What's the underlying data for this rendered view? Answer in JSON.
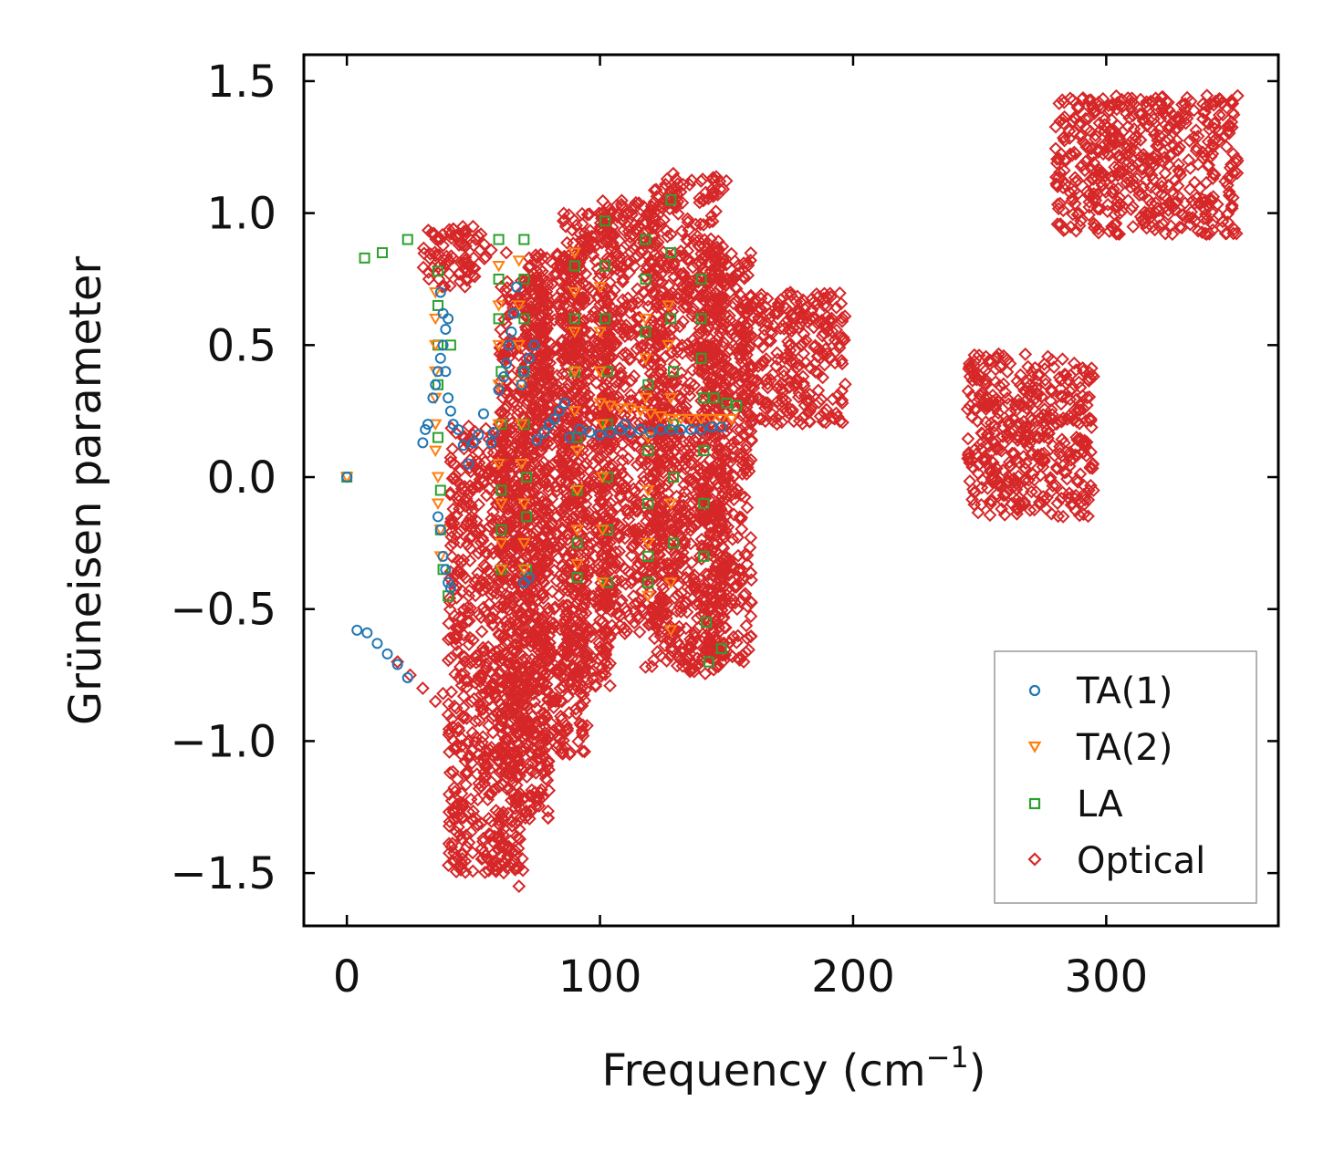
{
  "chart_data": {
    "type": "scatter",
    "title": "",
    "xlabel": "Frequency (cm",
    "xlabel_sup": "−1",
    "xlabel_close": ")",
    "ylabel": "Grüneisen parameter",
    "xlim": [
      -17,
      368
    ],
    "ylim": [
      -1.7,
      1.6
    ],
    "xticks": [
      0,
      100,
      200,
      300
    ],
    "xtick_labels": [
      "0",
      "100",
      "200",
      "300"
    ],
    "yticks": [
      1.5,
      1.0,
      0.5,
      0.0,
      -0.5,
      -1.0,
      -1.5
    ],
    "ytick_labels": [
      "1.5",
      "1.0",
      "0.5",
      "0.0",
      "−0.5",
      "−1.0",
      "−1.5"
    ],
    "legend_position": "lower-right",
    "series": [
      {
        "name": "TA(1)",
        "marker": "circle",
        "color": "#1f77b4",
        "points": [
          [
            0,
            0
          ],
          [
            30,
            0.13
          ],
          [
            31,
            0.18
          ],
          [
            32,
            0.2
          ],
          [
            34,
            0.3
          ],
          [
            35,
            0.35
          ],
          [
            36,
            0.4
          ],
          [
            37,
            0.45
          ],
          [
            38,
            0.5
          ],
          [
            39,
            0.56
          ],
          [
            40,
            0.6
          ],
          [
            37,
            0.7
          ],
          [
            38,
            0.62
          ],
          [
            39,
            0.4
          ],
          [
            40,
            0.3
          ],
          [
            41,
            0.25
          ],
          [
            42,
            0.2
          ],
          [
            44,
            0.18
          ],
          [
            46,
            0.12
          ],
          [
            48,
            0.05
          ],
          [
            50,
            0.13
          ],
          [
            52,
            0.16
          ],
          [
            54,
            0.24
          ],
          [
            57,
            0.13
          ],
          [
            58,
            0.17
          ],
          [
            60,
            0.33
          ],
          [
            62,
            0.38
          ],
          [
            63,
            0.43
          ],
          [
            64,
            0.5
          ],
          [
            65,
            0.55
          ],
          [
            66,
            0.62
          ],
          [
            67,
            0.72
          ],
          [
            69,
            0.35
          ],
          [
            70,
            0.4
          ],
          [
            72,
            0.45
          ],
          [
            74,
            0.5
          ],
          [
            36,
            -0.15
          ],
          [
            37,
            -0.2
          ],
          [
            38,
            -0.3
          ],
          [
            39,
            -0.35
          ],
          [
            40,
            -0.4
          ],
          [
            41,
            -0.42
          ],
          [
            70,
            -0.4
          ],
          [
            72,
            -0.38
          ],
          [
            75,
            0.14
          ],
          [
            78,
            0.17
          ],
          [
            80,
            0.2
          ],
          [
            82,
            0.22
          ],
          [
            84,
            0.25
          ],
          [
            86,
            0.28
          ],
          [
            88,
            0.15
          ],
          [
            92,
            0.18
          ],
          [
            96,
            0.17
          ],
          [
            100,
            0.16
          ],
          [
            104,
            0.17
          ],
          [
            108,
            0.18
          ],
          [
            110,
            0.2
          ],
          [
            112,
            0.17
          ],
          [
            116,
            0.18
          ],
          [
            120,
            0.17
          ],
          [
            124,
            0.18
          ],
          [
            128,
            0.18
          ],
          [
            132,
            0.18
          ],
          [
            136,
            0.18
          ],
          [
            140,
            0.18
          ],
          [
            144,
            0.19
          ],
          [
            148,
            0.19
          ],
          [
            4,
            -0.58
          ],
          [
            8,
            -0.59
          ],
          [
            12,
            -0.63
          ],
          [
            16,
            -0.67
          ],
          [
            20,
            -0.71
          ],
          [
            24,
            -0.76
          ]
        ]
      },
      {
        "name": "TA(2)",
        "marker": "triangle-down",
        "color": "#ff7f0e",
        "points": [
          [
            0,
            0
          ],
          [
            35,
            0.7
          ],
          [
            35,
            0.6
          ],
          [
            35,
            0.5
          ],
          [
            35,
            0.4
          ],
          [
            35,
            0.3
          ],
          [
            35,
            0.2
          ],
          [
            35,
            0.1
          ],
          [
            36,
            0.0
          ],
          [
            36,
            -0.1
          ],
          [
            37,
            -0.2
          ],
          [
            37,
            -0.3
          ],
          [
            60,
            0.8
          ],
          [
            60,
            0.65
          ],
          [
            60,
            0.5
          ],
          [
            60,
            0.35
          ],
          [
            60,
            0.2
          ],
          [
            60,
            0.05
          ],
          [
            61,
            -0.1
          ],
          [
            61,
            -0.25
          ],
          [
            61,
            -0.35
          ],
          [
            68,
            0.82
          ],
          [
            68,
            0.65
          ],
          [
            68,
            0.5
          ],
          [
            69,
            0.35
          ],
          [
            69,
            0.2
          ],
          [
            69,
            0.05
          ],
          [
            70,
            -0.1
          ],
          [
            70,
            -0.25
          ],
          [
            70,
            -0.35
          ],
          [
            90,
            0.85
          ],
          [
            90,
            0.7
          ],
          [
            90,
            0.55
          ],
          [
            90,
            0.4
          ],
          [
            90,
            0.25
          ],
          [
            91,
            0.1
          ],
          [
            91,
            -0.05
          ],
          [
            91,
            -0.2
          ],
          [
            91,
            -0.33
          ],
          [
            100,
            0.72
          ],
          [
            100,
            0.55
          ],
          [
            100,
            0.4
          ],
          [
            101,
            0.2
          ],
          [
            101,
            0.0
          ],
          [
            101,
            -0.2
          ],
          [
            101,
            -0.4
          ],
          [
            118,
            0.6
          ],
          [
            118,
            0.45
          ],
          [
            118,
            0.3
          ],
          [
            119,
            0.15
          ],
          [
            119,
            -0.05
          ],
          [
            119,
            -0.25
          ],
          [
            119,
            -0.45
          ],
          [
            127,
            0.65
          ],
          [
            127,
            0.5
          ],
          [
            128,
            0.3
          ],
          [
            128,
            -0.1
          ],
          [
            128,
            -0.4
          ],
          [
            128,
            -0.58
          ],
          [
            100,
            0.28
          ],
          [
            104,
            0.27
          ],
          [
            108,
            0.26
          ],
          [
            112,
            0.26
          ],
          [
            116,
            0.25
          ],
          [
            120,
            0.24
          ],
          [
            124,
            0.23
          ],
          [
            128,
            0.22
          ],
          [
            132,
            0.22
          ],
          [
            136,
            0.22
          ],
          [
            140,
            0.22
          ],
          [
            144,
            0.22
          ],
          [
            148,
            0.22
          ],
          [
            152,
            0.22
          ]
        ]
      },
      {
        "name": "LA",
        "marker": "square",
        "color": "#2ca02c",
        "points": [
          [
            0,
            0
          ],
          [
            7,
            0.83
          ],
          [
            14,
            0.85
          ],
          [
            24,
            0.9
          ],
          [
            36,
            0.78
          ],
          [
            36,
            0.65
          ],
          [
            36,
            0.5
          ],
          [
            36,
            0.35
          ],
          [
            36,
            0.15
          ],
          [
            37,
            -0.05
          ],
          [
            37,
            -0.2
          ],
          [
            38,
            -0.35
          ],
          [
            40,
            -0.45
          ],
          [
            41,
            0.5
          ],
          [
            60,
            0.9
          ],
          [
            60,
            0.75
          ],
          [
            60,
            0.6
          ],
          [
            61,
            0.4
          ],
          [
            61,
            0.2
          ],
          [
            61,
            -0.05
          ],
          [
            61,
            -0.2
          ],
          [
            61,
            -0.35
          ],
          [
            70,
            0.9
          ],
          [
            70,
            0.75
          ],
          [
            70,
            0.6
          ],
          [
            70,
            0.4
          ],
          [
            70,
            0.2
          ],
          [
            71,
            0.0
          ],
          [
            71,
            -0.15
          ],
          [
            71,
            -0.35
          ],
          [
            90,
            0.8
          ],
          [
            90,
            0.6
          ],
          [
            90,
            0.4
          ],
          [
            91,
            0.15
          ],
          [
            91,
            -0.05
          ],
          [
            91,
            -0.25
          ],
          [
            91,
            -0.38
          ],
          [
            102,
            0.97
          ],
          [
            102,
            0.8
          ],
          [
            102,
            0.6
          ],
          [
            103,
            0.4
          ],
          [
            103,
            0.2
          ],
          [
            103,
            0.0
          ],
          [
            103,
            -0.2
          ],
          [
            103,
            -0.4
          ],
          [
            118,
            0.9
          ],
          [
            118,
            0.75
          ],
          [
            118,
            0.55
          ],
          [
            119,
            0.35
          ],
          [
            119,
            0.1
          ],
          [
            119,
            -0.1
          ],
          [
            119,
            -0.3
          ],
          [
            119,
            -0.4
          ],
          [
            128,
            1.05
          ],
          [
            128,
            0.85
          ],
          [
            128,
            0.6
          ],
          [
            129,
            0.4
          ],
          [
            129,
            0.2
          ],
          [
            129,
            0.0
          ],
          [
            129,
            -0.25
          ],
          [
            140,
            0.75
          ],
          [
            140,
            0.6
          ],
          [
            140,
            0.45
          ],
          [
            141,
            0.3
          ],
          [
            141,
            0.1
          ],
          [
            141,
            -0.1
          ],
          [
            141,
            -0.3
          ],
          [
            142,
            -0.55
          ],
          [
            143,
            -0.7
          ],
          [
            148,
            -0.65
          ],
          [
            145,
            0.3
          ],
          [
            150,
            0.28
          ],
          [
            154,
            0.27
          ]
        ]
      },
      {
        "name": "Optical",
        "marker": "diamond",
        "color": "#d62728",
        "clouds": [
          {
            "x": [
              30,
              55
            ],
            "y": [
              0.72,
              0.95
            ]
          },
          {
            "x": [
              40,
              70
            ],
            "y": [
              -1.5,
              0.2
            ]
          },
          {
            "x": [
              60,
              80
            ],
            "y": [
              -1.3,
              0.75
            ]
          },
          {
            "x": [
              70,
              95
            ],
            "y": [
              -1.05,
              0.85
            ]
          },
          {
            "x": [
              85,
              105
            ],
            "y": [
              -0.8,
              1.0
            ]
          },
          {
            "x": [
              100,
              125
            ],
            "y": [
              -0.6,
              1.05
            ]
          },
          {
            "x": [
              120,
              150
            ],
            "y": [
              -0.75,
              1.15
            ]
          },
          {
            "x": [
              140,
              160
            ],
            "y": [
              -0.7,
              0.85
            ]
          },
          {
            "x": [
              155,
              197
            ],
            "y": [
              0.2,
              0.7
            ]
          },
          {
            "x": [
              245,
              295
            ],
            "y": [
              -0.15,
              0.47
            ]
          },
          {
            "x": [
              280,
              352
            ],
            "y": [
              0.92,
              1.45
            ]
          }
        ],
        "points": [
          [
            42,
            0.94
          ],
          [
            47,
            0.93
          ],
          [
            51,
            0.9
          ],
          [
            57,
            0.86
          ],
          [
            63,
            0.85
          ],
          [
            72,
            0.83
          ],
          [
            79,
            0.83
          ],
          [
            20,
            -0.7
          ],
          [
            25,
            -0.75
          ],
          [
            30,
            -0.8
          ],
          [
            35,
            -0.85
          ],
          [
            38,
            -0.82
          ],
          [
            40,
            -0.9
          ],
          [
            44,
            -0.95
          ],
          [
            48,
            -1.0
          ],
          [
            52,
            -1.05
          ],
          [
            55,
            -1.1
          ],
          [
            57,
            -1.2
          ],
          [
            60,
            -1.3
          ],
          [
            64,
            -1.4
          ],
          [
            66,
            -1.45
          ],
          [
            68,
            -1.55
          ],
          [
            88,
            -1.05
          ],
          [
            118,
            -0.72
          ],
          [
            128,
            -0.6
          ]
        ]
      }
    ]
  }
}
